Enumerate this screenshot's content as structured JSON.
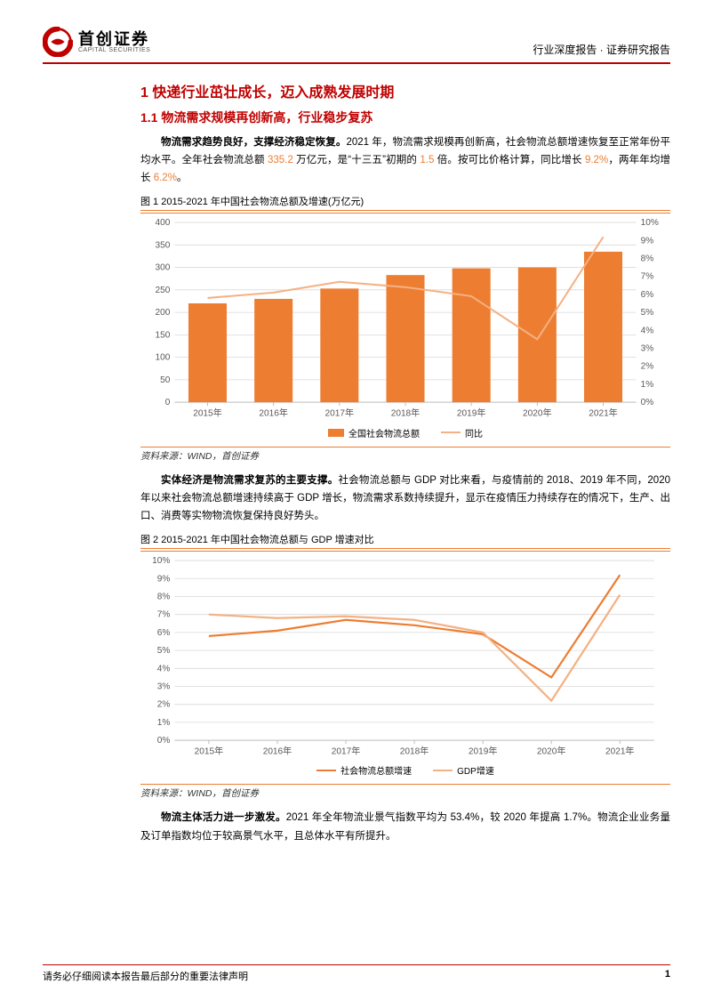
{
  "brand": {
    "cn": "首创证券",
    "en": "CAPITAL SECURITIES"
  },
  "header_right": "行业深度报告 · 证券研究报告",
  "h1": "1 快递行业茁壮成长，迈入成熟发展时期",
  "h2": "1.1 物流需求规模再创新高，行业稳步复苏",
  "p1_bold": "物流需求趋势良好，支撑经济稳定恢复。",
  "p1_rest_a": "2021 年，物流需求规模再创新高，社会物流总额增速恢复至正常年份平均水平。全年社会物流总额 ",
  "p1_num1": "335.2 ",
  "p1_rest_b": "万亿元，是“十三五”初期的 ",
  "p1_num2": "1.5 ",
  "p1_rest_c": "倍。按可比价格计算，同比增长 ",
  "p1_num3": "9.2%",
  "p1_rest_d": "，两年年均增长 ",
  "p1_num4": "6.2%",
  "p1_rest_e": "。",
  "fig1_title": "图 1 2015-2021 年中国社会物流总额及增速(万亿元)",
  "chart1": {
    "type": "bar+line",
    "categories": [
      "2015年",
      "2016年",
      "2017年",
      "2018年",
      "2019年",
      "2020年",
      "2021年"
    ],
    "bar_values": [
      220,
      230,
      253,
      283,
      298,
      300,
      335
    ],
    "line_values": [
      5.8,
      6.1,
      6.7,
      6.4,
      5.9,
      3.5,
      9.2
    ],
    "y_left": {
      "min": 0,
      "max": 400,
      "step": 50
    },
    "y_right": {
      "min": 0,
      "max": 10,
      "step": 1,
      "suffix": "%"
    },
    "bar_color": "#ed7d31",
    "line_color": "#f4b183",
    "grid_color": "#d9d9d9",
    "axis_color": "#bfbfbf",
    "text_color": "#595959",
    "font_size": 10,
    "legend": [
      "全国社会物流总额",
      "同比"
    ]
  },
  "source1": "资料来源：WIND，首创证券",
  "p2_bold": "实体经济是物流需求复苏的主要支撑。",
  "p2_rest": "社会物流总额与 GDP 对比来看，与疫情前的 2018、2019 年不同，2020 年以来社会物流总额增速持续高于 GDP 增长，物流需求系数持续提升，显示在疫情压力持续存在的情况下，生产、出口、消费等实物物流恢复保持良好势头。",
  "fig2_title": "图 2 2015-2021 年中国社会物流总额与 GDP 增速对比",
  "chart2": {
    "type": "line",
    "categories": [
      "2015年",
      "2016年",
      "2017年",
      "2018年",
      "2019年",
      "2020年",
      "2021年"
    ],
    "series": [
      {
        "name": "社会物流总额增速",
        "color": "#ed7d31",
        "values": [
          5.8,
          6.1,
          6.7,
          6.4,
          5.9,
          3.5,
          9.2
        ]
      },
      {
        "name": "GDP增速",
        "color": "#f4b183",
        "values": [
          7.0,
          6.8,
          6.9,
          6.7,
          6.0,
          2.2,
          8.1
        ]
      }
    ],
    "y": {
      "min": 0,
      "max": 10,
      "step": 1,
      "suffix": "%"
    },
    "grid_color": "#d9d9d9",
    "axis_color": "#bfbfbf",
    "text_color": "#595959",
    "font_size": 10,
    "legend": [
      "社会物流总额增速",
      "GDP增速"
    ]
  },
  "source2": "资料来源：WIND，首创证券",
  "p3_bold": "物流主体活力进一步激发。",
  "p3_rest": "2021 年全年物流业景气指数平均为 53.4%，较 2020 年提高 1.7%。物流企业业务量及订单指数均位于较高景气水平，且总体水平有所提升。",
  "footer_left": "请务必仔细阅读本报告最后部分的重要法律声明",
  "footer_page": "1"
}
